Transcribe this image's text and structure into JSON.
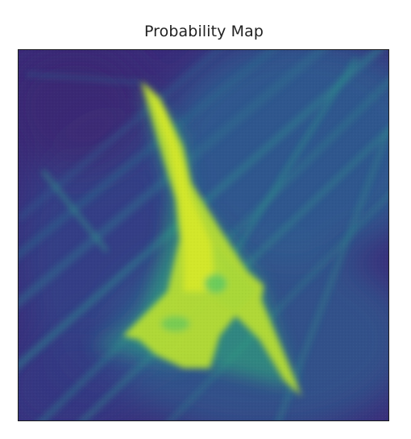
{
  "figure": {
    "title": "Probability Map"
  },
  "colors": {
    "background": "#ffffff",
    "colormap": "viridis",
    "low": "#3b2a78",
    "mid": "#2b8f8c",
    "high": "#d7e82a",
    "frame": "#1a1a1a"
  },
  "map": {
    "image_description_icon": "probability-heatmap-icon"
  }
}
